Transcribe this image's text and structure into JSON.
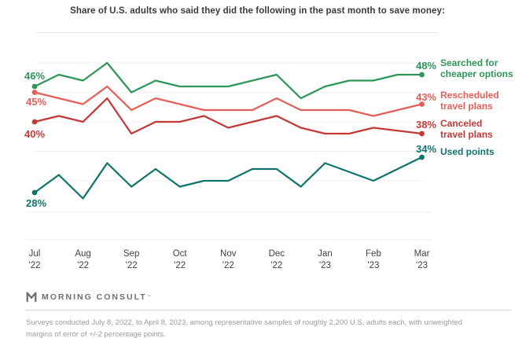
{
  "title": "Share of U.S. adults who said they did the following in the past month to save money:",
  "footer": {
    "logo_text": "MORNING CONSULT",
    "trademark": "™",
    "footnote": "Surveys conducted July 8, 2022, to April 8, 2023, among representative samples of roughly 2,200 U.S. adults each, with unweighted margins of error of +/-2 percentage points."
  },
  "chart_data": {
    "type": "line",
    "title": "Share of U.S. adults who said they did the following in the past month to save money:",
    "x_axis": {
      "months": [
        {
          "month": "Jul",
          "year": "'22"
        },
        {
          "month": "Aug",
          "year": "'22"
        },
        {
          "month": "Sep",
          "year": "'22"
        },
        {
          "month": "Oct",
          "year": "'22"
        },
        {
          "month": "Nov",
          "year": "'22"
        },
        {
          "month": "Dec",
          "year": "'22"
        },
        {
          "month": "Jan",
          "year": "'23"
        },
        {
          "month": "Feb",
          "year": "'23"
        },
        {
          "month": "Mar",
          "year": "'23"
        }
      ],
      "points_per_month": 2
    },
    "y_axis": {
      "unit": "%",
      "min": 25,
      "max": 50,
      "gridlines": [
        50,
        45,
        40,
        35,
        30,
        25
      ],
      "grid": true
    },
    "legend_position": "right",
    "series": [
      {
        "name": "Searched for cheaper options",
        "legend_lines": [
          "Searched for",
          "cheaper options"
        ],
        "color": "#2e9658",
        "start_label": "46%",
        "end_label": "48%",
        "values": [
          46,
          48,
          47,
          50,
          45,
          47,
          46,
          46,
          46,
          47,
          48,
          44,
          46,
          47,
          47,
          48,
          48
        ]
      },
      {
        "name": "Rescheduled travel plans",
        "legend_lines": [
          "Rescheduled",
          "travel plans"
        ],
        "color": "#e55f58",
        "start_label": "45%",
        "end_label": "43%",
        "values": [
          45,
          44,
          43,
          46,
          42,
          44,
          43,
          42,
          42,
          42,
          44,
          42,
          42,
          42,
          41,
          42,
          43
        ]
      },
      {
        "name": "Canceled travel plans",
        "legend_lines": [
          "Canceled",
          "travel plans"
        ],
        "color": "#c23a37",
        "start_label": "40%",
        "end_label": "38%",
        "values": [
          40,
          41,
          40,
          44,
          38,
          40,
          40,
          41,
          39,
          40,
          41,
          39,
          38,
          38,
          39,
          38.5,
          38
        ]
      },
      {
        "name": "Used points",
        "legend_lines": [
          "Used points"
        ],
        "color": "#0e746c",
        "start_label": "28%",
        "end_label": "34%",
        "values": [
          28,
          31,
          27,
          33,
          29,
          32,
          29,
          30,
          30,
          32,
          32,
          29,
          33,
          31.5,
          30,
          32,
          34
        ]
      }
    ]
  }
}
